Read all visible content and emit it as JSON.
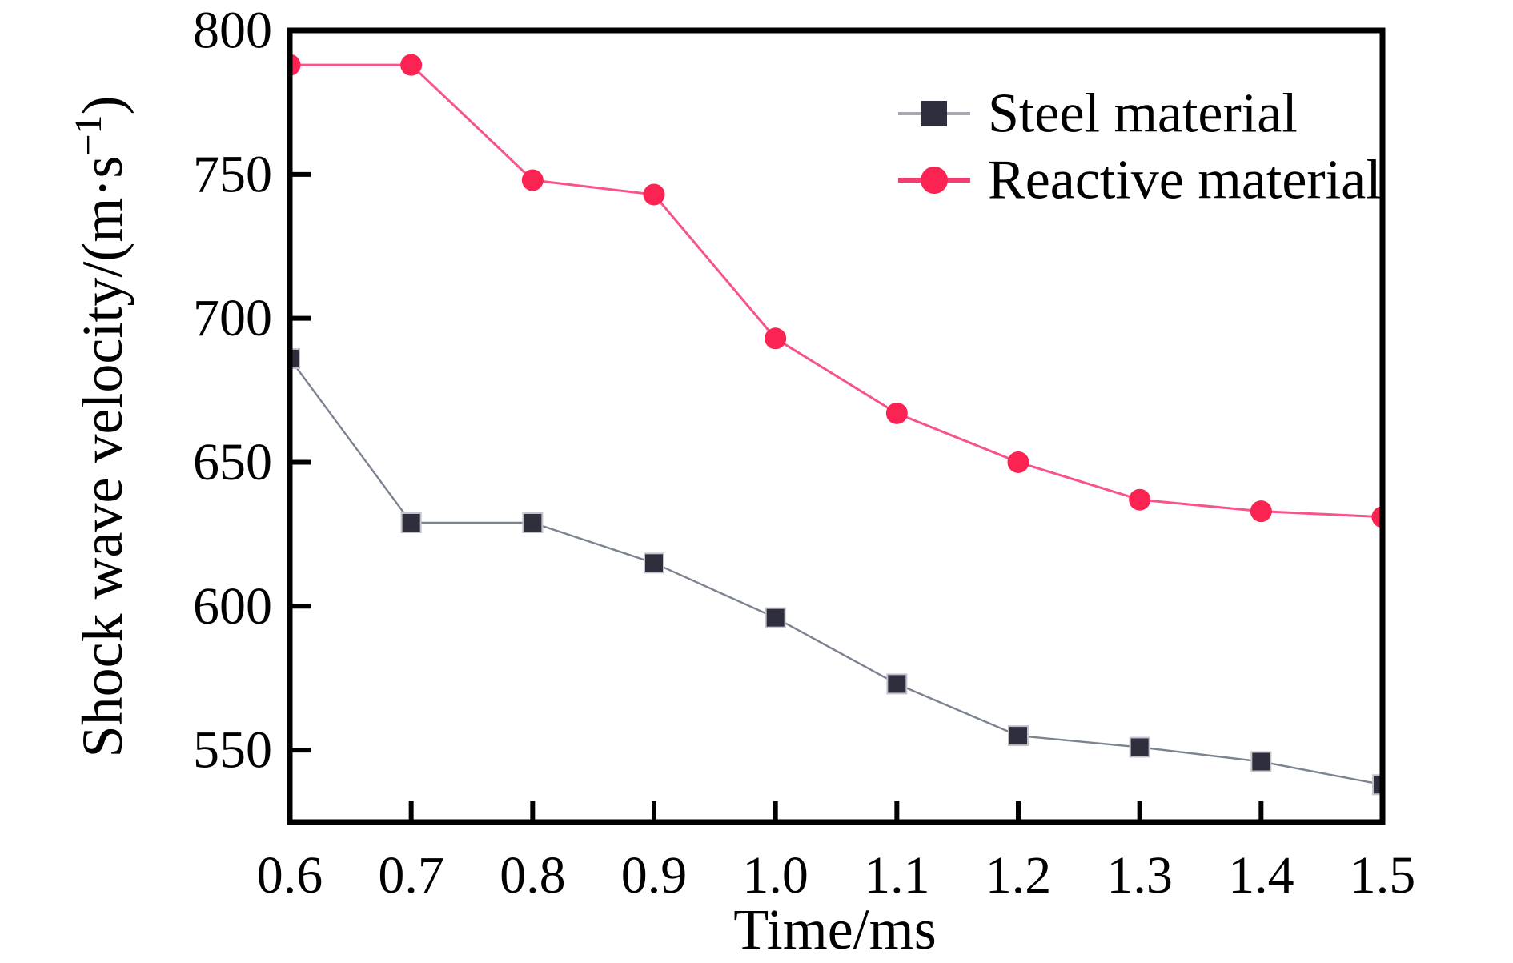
{
  "figure": {
    "background": "#ffffff",
    "axis_color": "#000000"
  },
  "chart_data": {
    "type": "line",
    "title": "",
    "xlabel": "Time/ms",
    "ylabel": "Shock wave velocity/(m·s⁻¹)",
    "ylabel_parts": {
      "main": "Shock wave velocity/(m·s",
      "superscript": "−1",
      "close": ")"
    },
    "x": [
      0.6,
      0.7,
      0.8,
      0.9,
      1.0,
      1.1,
      1.2,
      1.3,
      1.4,
      1.5
    ],
    "x_tick_labels": [
      "0.6",
      "0.7",
      "0.8",
      "0.9",
      "1.0",
      "1.1",
      "1.2",
      "1.3",
      "1.4",
      "1.5"
    ],
    "y_ticks": [
      "550",
      "600",
      "650",
      "700",
      "750",
      "800"
    ],
    "xlim": [
      0.6,
      1.5
    ],
    "ylim": [
      525,
      800
    ],
    "grid": false,
    "legend_position": "upper-right-inside",
    "series": [
      {
        "name": "Steel material",
        "marker": "square",
        "marker_color": "#2e2e3c",
        "line_color": "#7b8290",
        "legend_line_color": "#a9a9af",
        "values": [
          686,
          629,
          629,
          615,
          596,
          573,
          555,
          551,
          546,
          538
        ]
      },
      {
        "name": "Reactive material",
        "marker": "circle",
        "marker_color": "#fa2351",
        "line_color": "#f6548a",
        "legend_line_color": "#f63d72",
        "values": [
          788,
          788,
          748,
          743,
          693,
          667,
          650,
          637,
          633,
          631
        ]
      }
    ]
  }
}
